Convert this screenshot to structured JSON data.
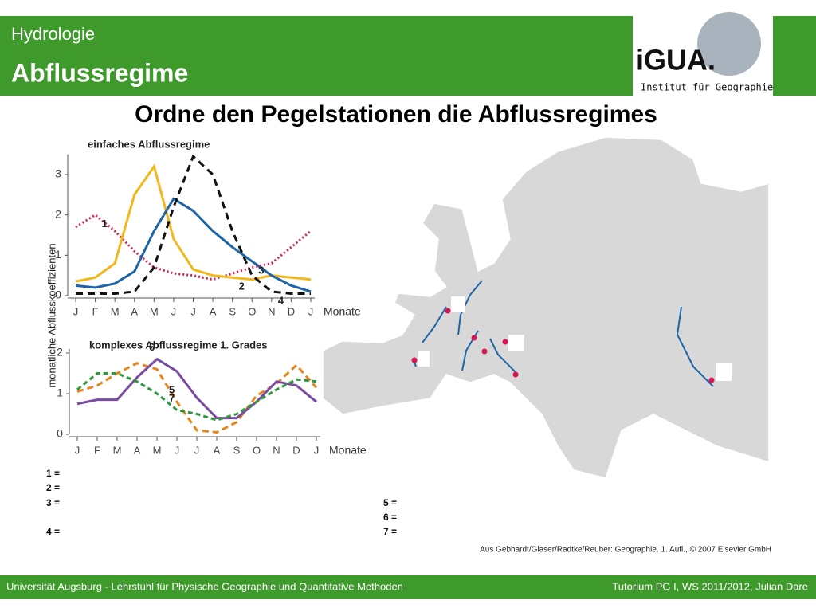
{
  "header": {
    "subtitle": "Hydrologie",
    "title": "Abflussregime",
    "logo": "iGUA.",
    "logo_caption": "Institut für Geographie"
  },
  "task": "Ordne den Pegelstationen die Abflussregimes",
  "y_label": "monatliche Abflusskoeffizienten",
  "chart_data": [
    {
      "type": "line",
      "title": "einfaches Abflussregime",
      "x_label": "Monate",
      "categories": [
        "J",
        "F",
        "M",
        "A",
        "M",
        "J",
        "J",
        "A",
        "S",
        "O",
        "N",
        "D",
        "J"
      ],
      "ylim": [
        0,
        3.5
      ],
      "yticks": [
        0,
        1,
        2,
        3
      ],
      "series": [
        {
          "name": "1",
          "color": "#d8204a",
          "dash": "2,3",
          "values": [
            1.7,
            2.0,
            1.6,
            1.1,
            0.7,
            0.55,
            0.5,
            0.4,
            0.55,
            0.7,
            0.8,
            1.2,
            1.6
          ]
        },
        {
          "name": "2",
          "color": "#f2b71c",
          "dash": "",
          "values": [
            0.35,
            0.45,
            0.8,
            2.5,
            3.2,
            1.4,
            0.65,
            0.5,
            0.45,
            0.4,
            0.5,
            0.45,
            0.4
          ]
        },
        {
          "name": "3",
          "color": "#1d64a8",
          "dash": "",
          "values": [
            0.25,
            0.2,
            0.3,
            0.6,
            1.6,
            2.4,
            2.1,
            1.6,
            1.2,
            0.85,
            0.5,
            0.25,
            0.1
          ]
        },
        {
          "name": "4",
          "color": "#111111",
          "dash": "9,6",
          "values": [
            0.05,
            0.05,
            0.05,
            0.1,
            0.7,
            2.2,
            3.45,
            3.0,
            1.6,
            0.5,
            0.1,
            0.05,
            0.05
          ]
        }
      ]
    },
    {
      "type": "line",
      "title": "komplexes Abflussregime 1. Grades",
      "x_label": "Monate",
      "categories": [
        "J",
        "F",
        "M",
        "A",
        "M",
        "J",
        "J",
        "A",
        "S",
        "O",
        "N",
        "D",
        "J"
      ],
      "ylim": [
        0,
        2.1
      ],
      "yticks": [
        0,
        1,
        2
      ],
      "series": [
        {
          "name": "5",
          "color": "#e8841c",
          "dash": "8,5",
          "values": [
            1.05,
            1.2,
            1.5,
            1.75,
            1.6,
            0.8,
            0.1,
            0.05,
            0.3,
            0.95,
            1.25,
            1.7,
            1.15
          ]
        },
        {
          "name": "6",
          "color": "#7b4aa3",
          "dash": "",
          "values": [
            0.75,
            0.85,
            0.85,
            1.4,
            1.85,
            1.55,
            0.9,
            0.4,
            0.4,
            0.8,
            1.3,
            1.2,
            0.8
          ]
        },
        {
          "name": "7",
          "color": "#2e9a3e",
          "dash": "6,4",
          "values": [
            1.1,
            1.5,
            1.5,
            1.3,
            1.0,
            0.6,
            0.5,
            0.35,
            0.5,
            0.8,
            1.1,
            1.35,
            1.3
          ]
        }
      ]
    }
  ],
  "answers": [
    "1 =",
    "2 =",
    "3 =",
    "4 =",
    "5 =",
    "6 =",
    "7 ="
  ],
  "credit": "Aus Gebhardt/Glaser/Radtke/Reuber: Geographie. 1. Aufl., © 2007 Elsevier GmbH",
  "footer": {
    "left": "Universität Augsburg - Lehrstuhl für Physische Geographie und Quantitative Methoden",
    "right": "Tutorium PG I, WS 2011/2012, Julian Dare"
  }
}
